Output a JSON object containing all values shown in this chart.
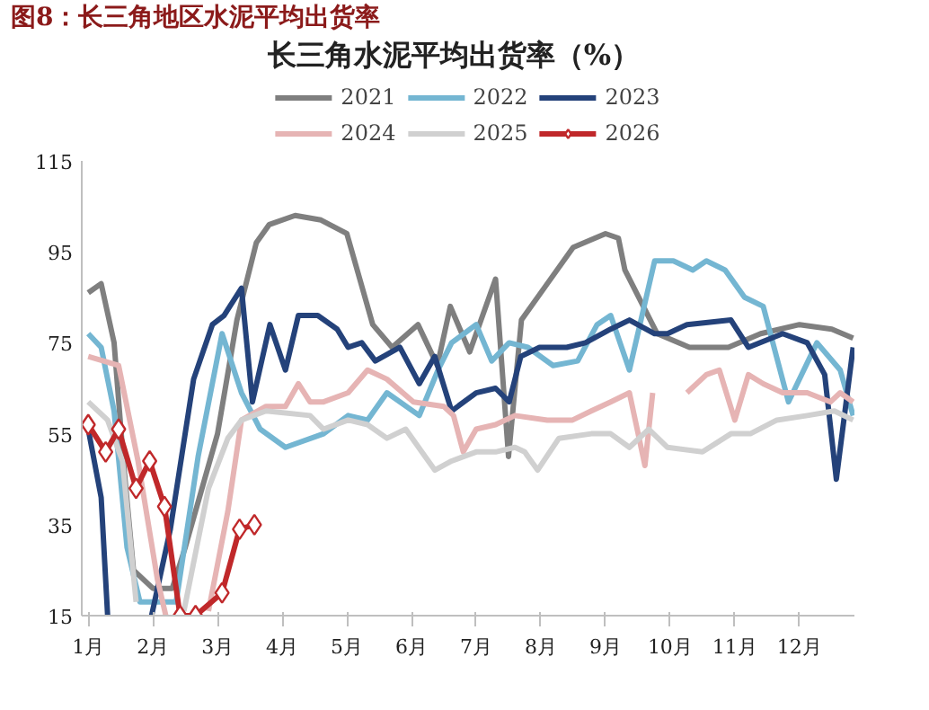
{
  "chart_data": {
    "type": "line",
    "title": "图8：长三角地区水泥平均出货率",
    "subtitle": "长三角水泥平均出货率（%）",
    "xlim": [
      0.9,
      12.85
    ],
    "xticks": [
      {
        "value": 1,
        "label": "1月"
      },
      {
        "value": 2,
        "label": "2月"
      },
      {
        "value": 3,
        "label": "3月"
      },
      {
        "value": 4,
        "label": "4月"
      },
      {
        "value": 5,
        "label": "5月"
      },
      {
        "value": 6,
        "label": "6月"
      },
      {
        "value": 7,
        "label": "7月"
      },
      {
        "value": 8,
        "label": "8月"
      },
      {
        "value": 9,
        "label": "9月"
      },
      {
        "value": 10,
        "label": "10月"
      },
      {
        "value": 11,
        "label": "11月"
      },
      {
        "value": 12,
        "label": "12月"
      }
    ],
    "ylim": [
      15,
      115
    ],
    "yticks": [
      15,
      35,
      55,
      75,
      95,
      115
    ],
    "grid": false,
    "legend": "top",
    "line_style": "solid",
    "series": [
      {
        "name": "2021",
        "color": "#7f7f7f",
        "marker": "none",
        "x": [
          1.0,
          1.2,
          1.4,
          1.55,
          1.7,
          2.0,
          2.3,
          2.5,
          3.0,
          3.3,
          3.6,
          3.8,
          4.2,
          4.6,
          5.0,
          5.4,
          5.7,
          6.1,
          6.4,
          6.6,
          6.9,
          7.3,
          7.5,
          7.7,
          8.1,
          8.5,
          9.0,
          9.2,
          9.3,
          9.8,
          10.3,
          10.9,
          11.4,
          12.0,
          12.5,
          12.83
        ],
        "values": [
          86,
          88,
          75,
          48,
          25,
          21,
          21,
          30,
          55,
          80,
          97,
          101,
          103,
          102,
          99,
          79,
          74,
          79,
          70,
          83,
          73,
          89,
          50,
          80,
          88,
          96,
          99,
          98,
          91,
          77,
          74,
          74,
          77,
          79,
          78,
          76
        ]
      },
      {
        "name": "2022",
        "color": "#74b6d2",
        "marker": "none",
        "x": [
          1.0,
          1.2,
          1.4,
          1.6,
          1.8,
          2.36,
          2.7,
          3.07,
          3.37,
          3.66,
          4.05,
          4.64,
          5.02,
          5.32,
          5.62,
          6.12,
          6.41,
          6.62,
          7.0,
          7.24,
          7.51,
          7.8,
          8.19,
          8.57,
          8.87,
          9.08,
          9.37,
          9.76,
          10.05,
          10.35,
          10.56,
          10.85,
          11.15,
          11.44,
          11.83,
          12.27,
          12.63,
          12.83
        ],
        "values": [
          77,
          74,
          60,
          30,
          18,
          18,
          50,
          77,
          64,
          56,
          52,
          55,
          59,
          58,
          64,
          59,
          69,
          75,
          79,
          71,
          75,
          74,
          70,
          71,
          79,
          81,
          69,
          93,
          93,
          91,
          93,
          91,
          85,
          83,
          62,
          75,
          69,
          59
        ]
      },
      {
        "name": "2023",
        "color": "#24427a",
        "marker": "none",
        "x": [
          1.0,
          1.2,
          1.3,
          1.5,
          1.98,
          2.27,
          2.63,
          2.92,
          3.1,
          3.37,
          3.54,
          3.81,
          4.05,
          4.25,
          4.55,
          4.85,
          5.02,
          5.23,
          5.44,
          5.82,
          6.12,
          6.36,
          6.62,
          7.0,
          7.3,
          7.51,
          7.69,
          7.98,
          8.4,
          8.69,
          9.08,
          9.37,
          9.76,
          9.96,
          10.26,
          10.94,
          11.21,
          11.74,
          12.12,
          12.39,
          12.57,
          12.83
        ],
        "values": [
          56,
          41,
          15,
          null,
          15,
          34,
          67,
          79,
          81,
          87,
          62,
          79,
          69,
          81,
          81,
          78,
          74,
          75,
          71,
          74,
          66,
          72,
          60,
          64,
          65,
          62,
          72,
          74,
          74,
          75,
          78,
          80,
          77,
          77,
          79,
          80,
          74,
          77,
          75,
          68,
          45,
          74
        ]
      },
      {
        "name": "2024",
        "color": "#e6b4b4",
        "marker": "none",
        "x": [
          1.0,
          1.47,
          1.77,
          2.07,
          2.2,
          2.5,
          2.86,
          3.16,
          3.37,
          3.75,
          4.05,
          4.25,
          4.43,
          4.64,
          5.02,
          5.32,
          5.62,
          6.03,
          6.5,
          6.65,
          6.8,
          7.0,
          7.3,
          7.6,
          8.1,
          8.49,
          8.78,
          9.08,
          9.37,
          9.61,
          9.73,
          9.9,
          10.26,
          10.56,
          10.76,
          11.0,
          11.21,
          11.44,
          11.74,
          12.12,
          12.48,
          12.63,
          12.83
        ],
        "values": [
          72,
          70,
          49,
          23,
          15,
          null,
          16,
          38,
          58,
          61,
          61,
          66,
          62,
          62,
          64,
          69,
          67,
          62,
          61,
          59,
          51,
          56,
          57,
          59,
          58,
          58,
          60,
          62,
          64,
          48,
          64,
          null,
          64,
          68,
          69,
          58,
          68,
          66,
          64,
          64,
          62,
          64,
          62
        ]
      },
      {
        "name": "2025",
        "color": "#d0d0d0",
        "marker": "none",
        "x": [
          1.0,
          1.3,
          1.53,
          1.74,
          2.1,
          2.48,
          2.86,
          3.16,
          3.37,
          3.75,
          4.43,
          4.64,
          5.02,
          5.32,
          5.62,
          5.91,
          6.36,
          6.62,
          7.0,
          7.3,
          7.6,
          7.75,
          7.95,
          8.28,
          8.78,
          9.08,
          9.37,
          9.67,
          9.96,
          10.5,
          10.94,
          11.24,
          11.65,
          12.12,
          12.54,
          12.83
        ],
        "values": [
          62,
          58,
          49,
          18,
          null,
          16,
          43,
          54,
          58,
          60,
          59,
          56,
          58,
          57,
          54,
          56,
          47,
          49,
          51,
          51,
          52,
          51,
          47,
          54,
          55,
          55,
          52,
          56,
          52,
          51,
          55,
          55,
          58,
          59,
          60,
          58
        ]
      },
      {
        "name": "2026",
        "color": "#c0282a",
        "marker": "diamond",
        "x": [
          1.0,
          1.27,
          1.47,
          1.74,
          1.95,
          2.18,
          2.42,
          2.66,
          3.07,
          3.34,
          3.57
        ],
        "values": [
          57,
          51,
          56,
          43,
          49,
          39,
          15,
          15,
          20,
          34,
          35
        ]
      }
    ]
  }
}
